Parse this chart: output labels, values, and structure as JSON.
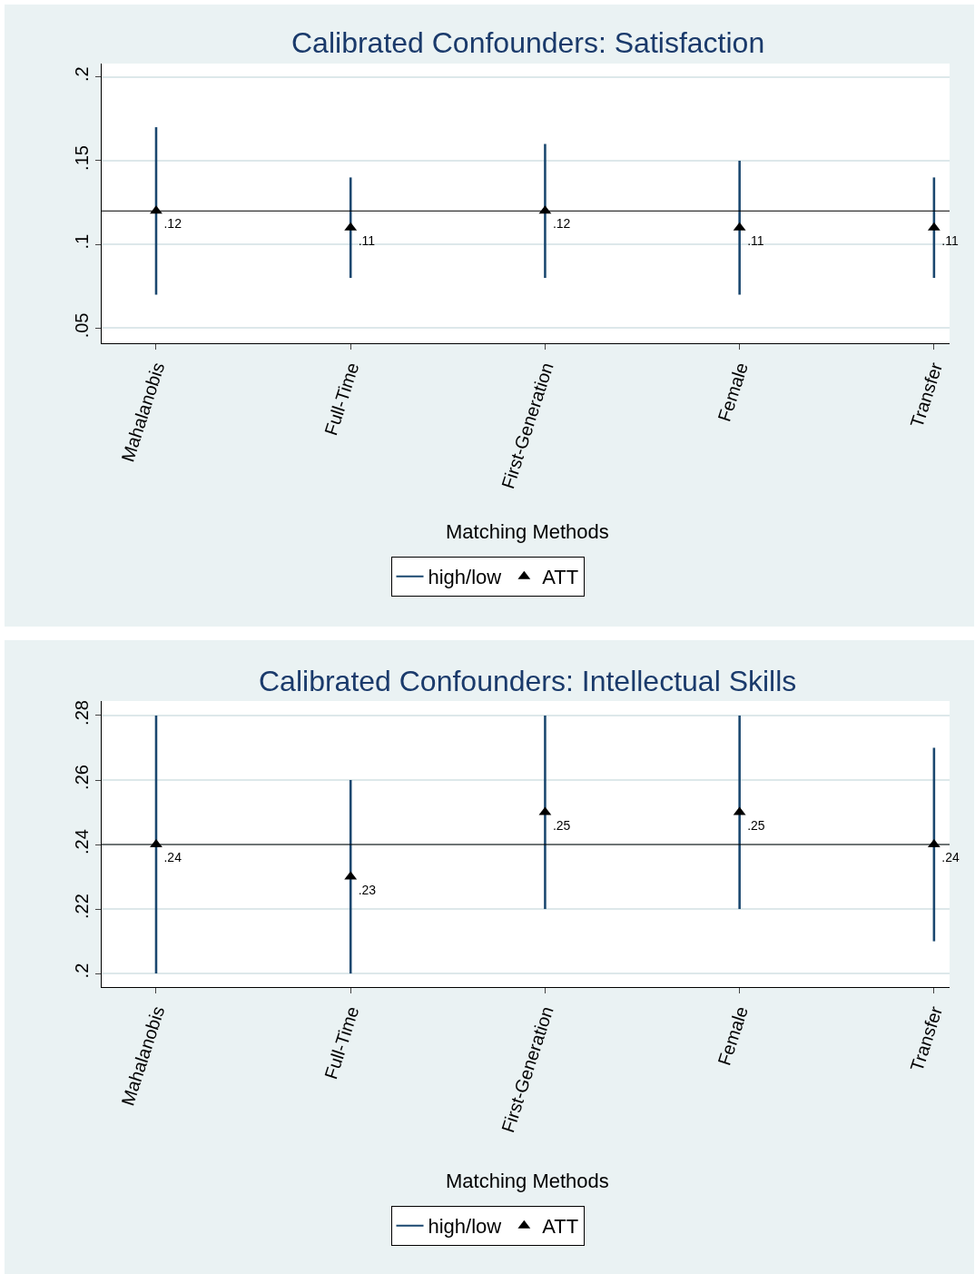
{
  "chart_data": [
    {
      "type": "scatter",
      "title": "Calibrated Confounders: Satisfaction",
      "xlabel": "Matching Methods",
      "categories": [
        "Mahalanobis",
        "Full-Time",
        "First-Generation",
        "Female",
        "Transfer"
      ],
      "ylim": [
        0.041,
        0.208
      ],
      "yticks": [
        {
          "value": 0.05,
          "label": ".05"
        },
        {
          "value": 0.1,
          "label": ".1"
        },
        {
          "value": 0.15,
          "label": ".15"
        },
        {
          "value": 0.2,
          "label": ".2"
        }
      ],
      "grid": "y",
      "legend": "bottom",
      "marker": "triangle",
      "series": [
        {
          "name": "high/low",
          "type": "bar",
          "color": "#1a476f",
          "base": [
            0.07,
            0.08,
            0.08,
            0.07,
            0.08
          ],
          "values": [
            0.1,
            0.06,
            0.08,
            0.08,
            0.06
          ]
        },
        {
          "name": "ATT",
          "color": "#000000",
          "values": [
            0.12,
            0.11,
            0.12,
            0.11,
            0.11
          ],
          "value_labels": [
            ".12",
            ".11",
            ".12",
            ".11",
            ".11"
          ]
        }
      ],
      "ref_lines": [
        {
          "axis": "y",
          "value": 0.12,
          "label": null,
          "color": "#000000"
        }
      ]
    },
    {
      "type": "scatter",
      "title": "Calibrated Confounders: Intellectual Skills",
      "xlabel": "Matching Methods",
      "categories": [
        "Mahalanobis",
        "Full-Time",
        "First-Generation",
        "Female",
        "Transfer"
      ],
      "ylim": [
        0.1958,
        0.2845
      ],
      "yticks": [
        {
          "value": 0.2,
          "label": ".2"
        },
        {
          "value": 0.22,
          "label": ".22"
        },
        {
          "value": 0.24,
          "label": ".24"
        },
        {
          "value": 0.26,
          "label": ".26"
        },
        {
          "value": 0.28,
          "label": ".28"
        }
      ],
      "grid": "y",
      "legend": "bottom",
      "marker": "triangle",
      "series": [
        {
          "name": "high/low",
          "type": "bar",
          "color": "#1a476f",
          "base": [
            0.2,
            0.2,
            0.22,
            0.22,
            0.21
          ],
          "values": [
            0.08,
            0.06,
            0.06,
            0.06,
            0.06
          ]
        },
        {
          "name": "ATT",
          "color": "#000000",
          "values": [
            0.24,
            0.23,
            0.25,
            0.25,
            0.24
          ],
          "value_labels": [
            ".24",
            ".23",
            ".25",
            ".25",
            ".24"
          ]
        }
      ],
      "ref_lines": [
        {
          "axis": "y",
          "value": 0.24,
          "label": null,
          "color": "#000000"
        }
      ]
    }
  ]
}
